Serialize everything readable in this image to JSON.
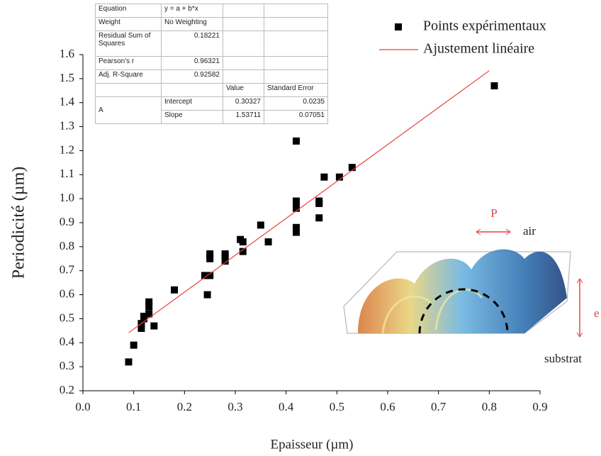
{
  "chart_data": {
    "type": "scatter",
    "x_label": "Epaisseur (µm)",
    "y_label": "Periodicité (µm)",
    "xlim": [
      0,
      0.9
    ],
    "ylim": [
      0.2,
      1.6
    ],
    "xticks": [
      {
        "value": 0,
        "label": "0.0"
      },
      0.1,
      0.2,
      0.3,
      0.4,
      0.5,
      0.6,
      0.7,
      0.8,
      0.9
    ],
    "yticks": [
      0.2,
      0.3,
      0.4,
      0.5,
      0.6,
      0.7,
      0.8,
      0.9,
      {
        "value": 1,
        "label": "1.0"
      },
      1.1,
      1.2,
      1.3,
      1.4,
      1.5,
      1.6
    ],
    "series": [
      {
        "name": "Points expérimentaux",
        "type": "scatter",
        "color": "#000000",
        "x": [
          0.09,
          0.1,
          0.115,
          0.115,
          0.12,
          0.12,
          0.13,
          0.13,
          0.13,
          0.14,
          0.18,
          0.24,
          0.245,
          0.25,
          0.25,
          0.25,
          0.28,
          0.28,
          0.28,
          0.31,
          0.315,
          0.315,
          0.35,
          0.365,
          0.42,
          0.42,
          0.42,
          0.42,
          0.42,
          0.42,
          0.465,
          0.465,
          0.465,
          0.475,
          0.505,
          0.53,
          0.81
        ],
        "values": [
          0.32,
          0.39,
          0.46,
          0.48,
          0.5,
          0.51,
          0.52,
          0.55,
          0.57,
          0.47,
          0.62,
          0.68,
          0.6,
          0.68,
          0.75,
          0.77,
          0.74,
          0.76,
          0.77,
          0.83,
          0.78,
          0.82,
          0.89,
          0.82,
          0.86,
          0.88,
          0.96,
          0.98,
          0.99,
          1.24,
          0.92,
          0.98,
          0.99,
          1.09,
          1.09,
          1.13,
          1.47
        ]
      },
      {
        "name": "Ajustement linéaire",
        "type": "line",
        "color": "#e8413f",
        "x": [
          0.09,
          0.8
        ],
        "values": [
          0.4416,
          1.533
        ]
      }
    ],
    "fit_table": {
      "rows": [
        [
          "Equation",
          "y = a + b*x"
        ],
        [
          "Weight",
          "No Weighting"
        ],
        [
          "Residual Sum of Squares",
          "0.18221"
        ],
        [
          "Pearson's r",
          "0.96321"
        ],
        [
          "Adj. R-Square",
          "0.92582"
        ]
      ],
      "header": [
        "Value",
        "Standard Error"
      ],
      "param": "A",
      "params": [
        [
          "Intercept",
          "0.30327",
          "0.0235"
        ],
        [
          "Slope",
          "1.53711",
          "0.07051"
        ]
      ]
    },
    "annotations": {
      "period": "P",
      "air": "air",
      "thickness": "e",
      "substrate": "substrat"
    }
  }
}
